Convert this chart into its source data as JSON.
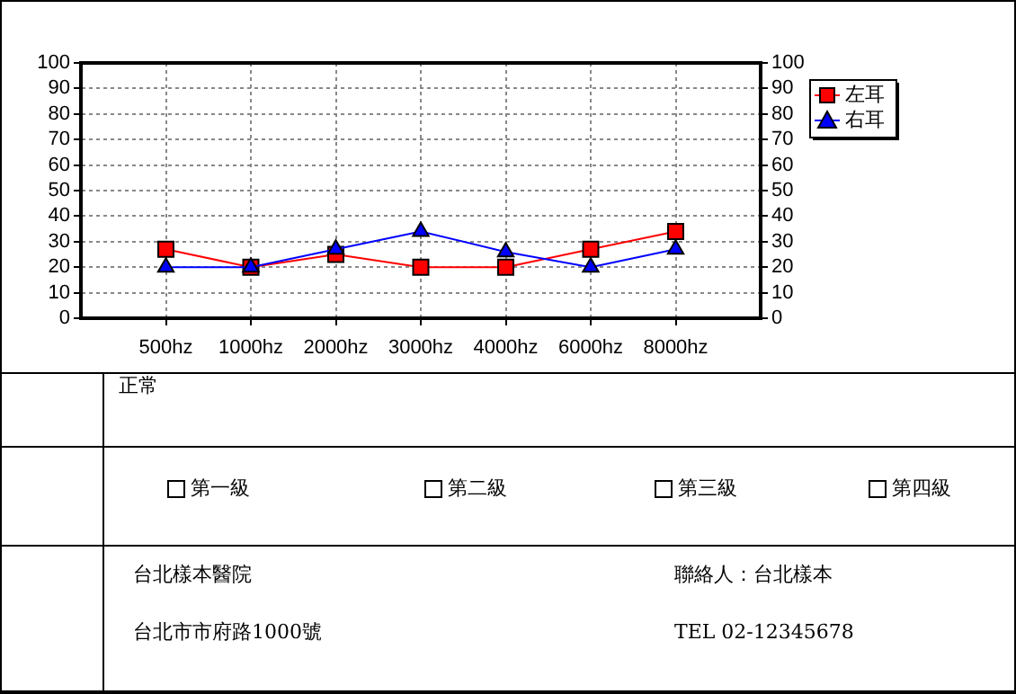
{
  "chart_data": {
    "type": "line",
    "categories": [
      "500hz",
      "1000hz",
      "2000hz",
      "3000hz",
      "4000hz",
      "6000hz",
      "8000hz"
    ],
    "series": [
      {
        "name": "左耳",
        "color": "#ff0000",
        "marker": "square",
        "values": [
          27,
          20,
          25,
          20,
          20,
          27,
          34
        ]
      },
      {
        "name": "右耳",
        "color": "#0000ff",
        "marker": "triangle",
        "values": [
          20,
          20,
          27,
          34,
          26,
          20,
          27
        ]
      }
    ],
    "ylim": [
      0,
      100
    ],
    "yticks": [
      0,
      10,
      20,
      30,
      40,
      50,
      60,
      70,
      80,
      90,
      100
    ],
    "y2lim": [
      0,
      100
    ],
    "y2ticks": [
      0,
      10,
      20,
      30,
      40,
      50,
      60,
      70,
      80,
      90,
      100
    ],
    "grid": true,
    "legend": "top right",
    "line_style": "solid",
    "annotations": [
      "正常",
      "第一級",
      "第二級",
      "第三級",
      "第四級",
      "台北樣本醫院",
      "聯絡人：台北樣本",
      "台北市市府路1000號",
      "TEL 02-12345678"
    ]
  }
}
